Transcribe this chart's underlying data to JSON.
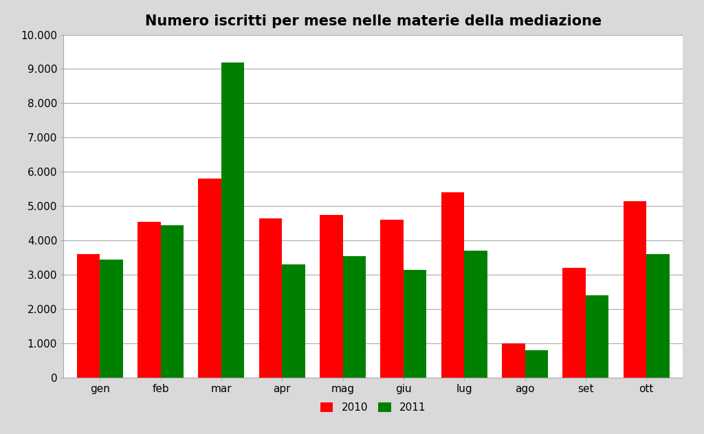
{
  "title": "Numero iscritti per mese nelle materie della mediazione",
  "categories": [
    "gen",
    "feb",
    "mar",
    "apr",
    "mag",
    "giu",
    "lug",
    "ago",
    "set",
    "ott"
  ],
  "series_2010": [
    3600,
    4550,
    5800,
    4650,
    4750,
    4600,
    5400,
    1000,
    3200,
    5150
  ],
  "series_2011": [
    3450,
    4450,
    9200,
    3300,
    3550,
    3150,
    3700,
    800,
    2400,
    3600
  ],
  "color_2010": "#FF0000",
  "color_2011": "#008000",
  "legend_labels": [
    "2010",
    "2011"
  ],
  "ylim": [
    0,
    10000
  ],
  "yticks": [
    0,
    1000,
    2000,
    3000,
    4000,
    5000,
    6000,
    7000,
    8000,
    9000,
    10000
  ],
  "background_color": "#D9D9D9",
  "plot_bg_color": "#FFFFFF",
  "title_fontsize": 15,
  "tick_fontsize": 11,
  "legend_fontsize": 11,
  "bar_width": 0.38,
  "grid_color": "#AAAAAA",
  "border_color": "#AAAAAA"
}
